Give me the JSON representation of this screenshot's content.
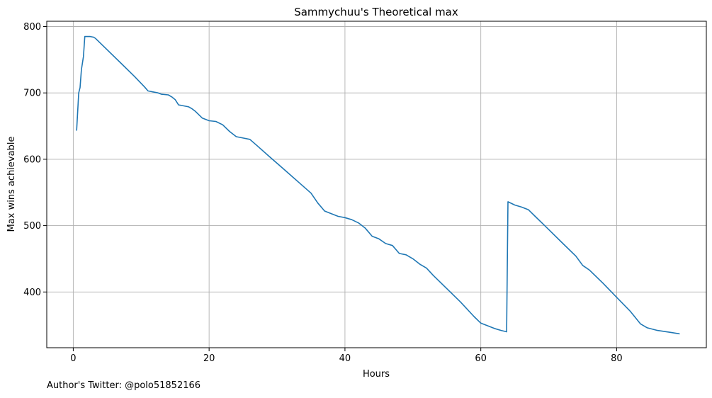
{
  "chart_data": {
    "type": "line",
    "title": "Sammychuu's Theoretical max",
    "xlabel": "Hours",
    "ylabel": "Max wins achievable",
    "xlim": [
      -3.9,
      93.2
    ],
    "ylim": [
      316,
      808
    ],
    "xticks": [
      0,
      20,
      40,
      60,
      80
    ],
    "yticks": [
      400,
      500,
      600,
      700,
      800
    ],
    "grid": true,
    "legend": "none",
    "series": [
      {
        "color": "#1f77b4",
        "x": [
          0.5,
          0.8,
          1.0,
          1.2,
          1.5,
          1.7,
          2.0,
          2.5,
          3.0,
          3.3,
          5.0,
          7.0,
          9.0,
          10.5,
          11.0,
          12.0,
          12.5,
          13.0,
          14.0,
          14.5,
          15.0,
          15.5,
          16.0,
          17.0,
          17.5,
          18.0,
          19.0,
          20.0,
          21.0,
          22.0,
          23.0,
          24.0,
          25.0,
          26.0,
          27.0,
          29.0,
          31.0,
          33.0,
          35.0,
          36.0,
          37.0,
          38.0,
          39.0,
          40.0,
          41.0,
          42.0,
          43.0,
          44.0,
          45.0,
          46.0,
          47.0,
          48.0,
          49.0,
          50.0,
          51.0,
          52.0,
          53.0,
          55.0,
          57.0,
          59.0,
          60.0,
          62.0,
          63.0,
          63.8,
          64.0,
          65.0,
          66.0,
          67.0,
          68.0,
          70.0,
          72.0,
          74.0,
          75.0,
          76.0,
          78.0,
          80.0,
          82.0,
          83.5,
          84.5,
          86.0,
          88.0,
          89.2
        ],
        "y": [
          644,
          700,
          708,
          735,
          755,
          785,
          785,
          785,
          784,
          782,
          765,
          745,
          725,
          709,
          703,
          701,
          700,
          698,
          697,
          694,
          690,
          682,
          681,
          679,
          676,
          672,
          662,
          658,
          657,
          652,
          642,
          634,
          632,
          630,
          621,
          603,
          585,
          567,
          549,
          534,
          522,
          518,
          514,
          512,
          509,
          504,
          496,
          484,
          480,
          473,
          470,
          458,
          456,
          450,
          442,
          436,
          425,
          405,
          385,
          363,
          353,
          345,
          342,
          340,
          536,
          531,
          528,
          524,
          514,
          494,
          474,
          454,
          440,
          433,
          413,
          392,
          371,
          352,
          346,
          342,
          339,
          337
        ]
      }
    ]
  },
  "footer": {
    "note": "Author's Twitter: @polo51852166"
  }
}
